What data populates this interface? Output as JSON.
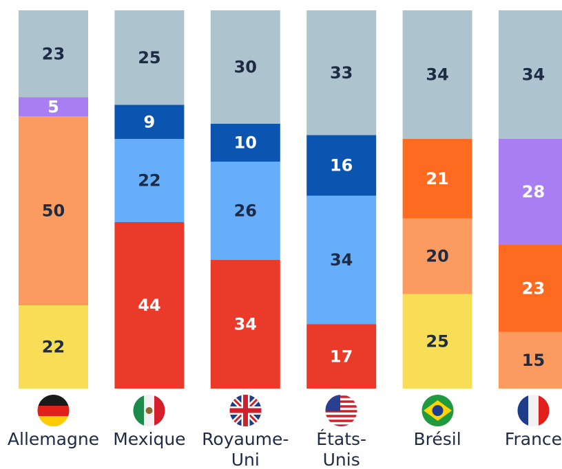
{
  "chart_data": {
    "type": "stacked-bar",
    "categories": [
      [
        "Allemagne"
      ],
      [
        "Mexique"
      ],
      [
        "Royaume-",
        "Uni"
      ],
      [
        "États-",
        "Unis"
      ],
      [
        "Brésil"
      ],
      [
        "France"
      ]
    ],
    "ylim": [
      0,
      100
    ],
    "stacks": [
      {
        "values": [
          22,
          50,
          5,
          23
        ],
        "colors": [
          "#f8dd57",
          "#fb9b60",
          "#a97ef2",
          "#adc4ce"
        ]
      },
      {
        "values": [
          44,
          22,
          9,
          25
        ],
        "colors": [
          "#ea3a2a",
          "#67aefa",
          "#0b55b1",
          "#adc4ce"
        ]
      },
      {
        "values": [
          34,
          26,
          10,
          30
        ],
        "colors": [
          "#ea3a2a",
          "#67aefa",
          "#0b55b1",
          "#adc4ce"
        ]
      },
      {
        "values": [
          17,
          34,
          16,
          33
        ],
        "colors": [
          "#ea3a2a",
          "#67aefa",
          "#0b55b1",
          "#adc4ce"
        ]
      },
      {
        "values": [
          25,
          20,
          21,
          34
        ],
        "colors": [
          "#f8dd57",
          "#fb9b60",
          "#fd6b21",
          "#adc4ce"
        ]
      },
      {
        "values": [
          15,
          23,
          28,
          34
        ],
        "colors": [
          "#fb9b60",
          "#fd6b21",
          "#a97ef2",
          "#adc4ce"
        ]
      }
    ]
  }
}
